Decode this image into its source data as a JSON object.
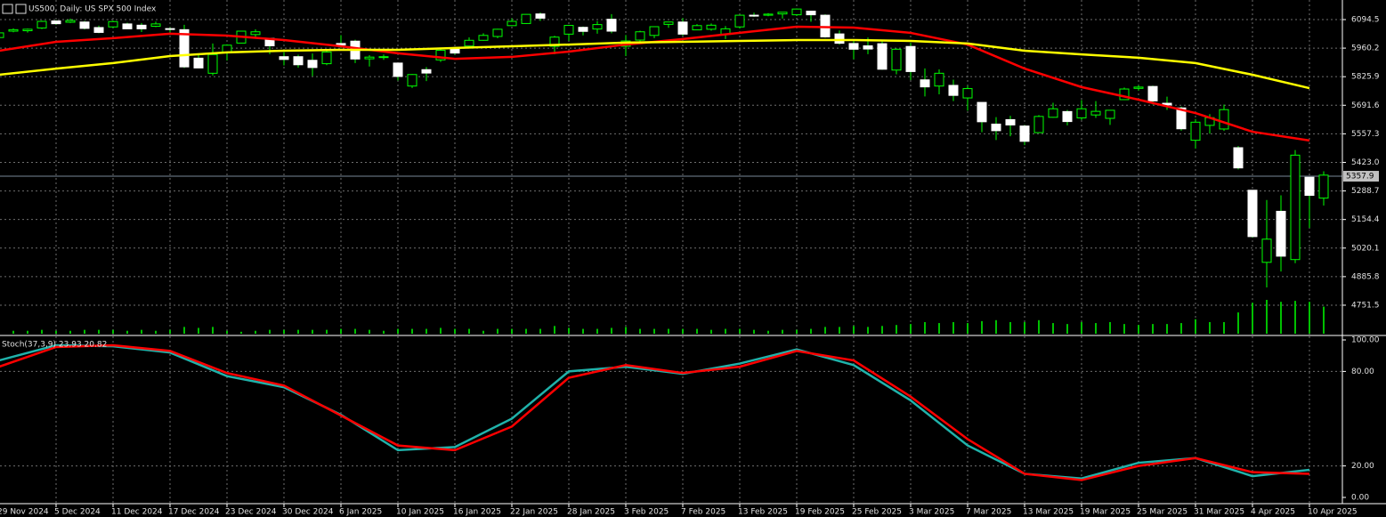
{
  "chart_data": [
    {
      "type": "candlestick",
      "title": "US500, Daily: US SPX 500 Index",
      "categories": [
        "29 Nov 2024",
        null,
        null,
        null,
        "5 Dec 2024",
        null,
        null,
        null,
        "11 Dec 2024",
        null,
        null,
        null,
        "17 Dec 2024",
        null,
        null,
        null,
        "23 Dec 2024",
        null,
        null,
        null,
        "30 Dec 2024",
        null,
        null,
        null,
        "6 Jan 2025",
        null,
        null,
        null,
        "10 Jan 2025",
        null,
        null,
        null,
        "16 Jan 2025",
        null,
        null,
        null,
        "22 Jan 2025",
        null,
        null,
        null,
        "28 Jan 2025",
        null,
        null,
        null,
        "3 Feb 2025",
        null,
        null,
        null,
        "7 Feb 2025",
        null,
        null,
        null,
        "13 Feb 2025",
        null,
        null,
        null,
        "19 Feb 2025",
        null,
        null,
        null,
        "25 Feb 2025",
        null,
        null,
        null,
        "3 Mar 2025",
        null,
        null,
        null,
        "7 Mar 2025",
        null,
        null,
        null,
        "13 Mar 2025",
        null,
        null,
        null,
        "19 Mar 2025",
        null,
        null,
        null,
        "25 Mar 2025",
        null,
        null,
        null,
        "31 Mar 2025",
        null,
        null,
        null,
        "4 Apr 2025",
        null,
        null,
        null,
        "10 Apr 2025",
        null
      ],
      "open": [
        6010,
        6040,
        6042,
        6055,
        6088,
        6082,
        6083,
        6057,
        6060,
        6074,
        6068,
        6063,
        6052,
        6047,
        5913,
        5842,
        5940,
        5984,
        6024,
        6006,
        5920,
        5920,
        5903,
        5887,
        5982,
        5993,
        5910,
        5918,
        5890,
        5782,
        5859,
        5905,
        5955,
        5970,
        5997,
        6015,
        6066,
        6076,
        6121,
        5969,
        6026,
        6058,
        6050,
        6096,
        5969,
        5998,
        6020,
        6072,
        6083,
        6046,
        6049,
        6025,
        6060,
        6115,
        6115,
        6121,
        6117,
        6134,
        6115,
        6027,
        5982,
        5971,
        5981,
        5857,
        5968,
        5811,
        5782,
        5785,
        5726,
        5705,
        5603,
        5624,
        5594,
        5563,
        5635,
        5662,
        5632,
        5646,
        5630,
        5718,
        5771,
        5780,
        5701,
        5679,
        5527,
        5597,
        5580,
        5492,
        5292,
        4953,
        5193,
        4966,
        5353,
        5255
      ],
      "high": [
        6044,
        6053,
        6052,
        6089,
        6092,
        6099,
        6088,
        6066,
        6090,
        6080,
        6078,
        6085,
        6058,
        6070,
        5935,
        5982,
        5978,
        6040,
        6049,
        6006,
        5941,
        5929,
        5935,
        5950,
        6021,
        6000,
        5927,
        5930,
        5890,
        5838,
        5871,
        5960,
        5964,
        6011,
        6030,
        6051,
        6100,
        6120,
        6128,
        6018,
        6070,
        6062,
        6087,
        6120,
        6022,
        6042,
        6062,
        6084,
        6101,
        6073,
        6076,
        6064,
        6116,
        6127,
        6125,
        6129,
        6147,
        6134,
        6119,
        6043,
        5993,
        6010,
        5994,
        5959,
        5986,
        5865,
        5860,
        5812,
        5783,
        5705,
        5636,
        5642,
        5598,
        5645,
        5703,
        5670,
        5716,
        5711,
        5670,
        5775,
        5786,
        5784,
        5732,
        5685,
        5627,
        5650,
        5695,
        5500,
        5292,
        5246,
        5268,
        5481,
        5353,
        5381
      ],
      "low": [
        6005,
        6035,
        6033,
        6050,
        6070,
        6078,
        6048,
        6030,
        6055,
        6050,
        6036,
        6059,
        6035,
        5867,
        5866,
        5832,
        5902,
        5983,
        6007,
        5932,
        5879,
        5868,
        5829,
        5880,
        5960,
        5890,
        5874,
        5905,
        5808,
        5773,
        5805,
        5895,
        5930,
        5963,
        5995,
        6007,
        6064,
        6074,
        6088,
        5932,
        5994,
        6020,
        6028,
        6030,
        5923,
        5990,
        6007,
        6056,
        6019,
        6044,
        6042,
        6003,
        6052,
        6107,
        6110,
        6099,
        6111,
        6084,
        6009,
        5977,
        5908,
        5932,
        5858,
        5837,
        5810,
        5733,
        5743,
        5711,
        5666,
        5565,
        5528,
        5546,
        5504,
        5563,
        5633,
        5597,
        5622,
        5632,
        5599,
        5718,
        5761,
        5695,
        5670,
        5572,
        5488,
        5558,
        5571,
        5390,
        5069,
        4835,
        4910,
        4949,
        5115,
        5220
      ],
      "close": [
        6032,
        6047,
        6049,
        6086,
        6075,
        6090,
        6053,
        6034,
        6085,
        6051,
        6051,
        6074,
        6050,
        5872,
        5867,
        5930,
        5974,
        6040,
        6037,
        5971,
        5907,
        5882,
        5869,
        5942,
        5975,
        5909,
        5918,
        5920,
        5827,
        5836,
        5843,
        5950,
        5937,
        5997,
        6020,
        6049,
        6086,
        6119,
        6101,
        6012,
        6067,
        6039,
        6071,
        6040,
        5994,
        6037,
        6061,
        6083,
        6026,
        6066,
        6068,
        6051,
        6115,
        6114,
        6120,
        6129,
        6144,
        6117,
        6013,
        5983,
        5955,
        5956,
        5861,
        5955,
        5850,
        5778,
        5842,
        5738,
        5770,
        5614,
        5572,
        5599,
        5522,
        5639,
        5675,
        5615,
        5675,
        5663,
        5668,
        5768,
        5777,
        5712,
        5693,
        5581,
        5612,
        5633,
        5671,
        5397,
        5074,
        5062,
        4982,
        5457,
        5268,
        5363
      ],
      "up_color": "#000000",
      "down_color": "#ffffff",
      "wick_color": "#00ff00",
      "volume": {
        "color": "#00c000",
        "values": [
          3,
          3,
          3,
          4,
          3,
          3,
          4,
          4,
          4,
          3,
          4,
          3,
          4,
          7,
          6,
          7,
          3,
          2,
          3,
          4,
          4,
          4,
          4,
          4,
          5,
          5,
          4,
          3,
          5,
          5,
          5,
          6,
          5,
          5,
          3,
          5,
          5,
          5,
          5,
          8,
          6,
          5,
          5,
          6,
          7,
          5,
          5,
          5,
          5,
          5,
          4,
          5,
          5,
          4,
          3,
          4,
          4,
          5,
          7,
          7,
          8,
          7,
          8,
          9,
          10,
          12,
          11,
          12,
          11,
          13,
          14,
          12,
          12,
          14,
          11,
          10,
          12,
          11,
          12,
          10,
          9,
          10,
          10,
          11,
          15,
          12,
          12,
          22,
          32,
          35,
          33,
          34,
          33,
          28
        ]
      },
      "overlays": [
        {
          "color": "#ff0000",
          "x": [
            "29 Nov 2024",
            "5 Dec 2024",
            "11 Dec 2024",
            "17 Dec 2024",
            "23 Dec 2024",
            "30 Dec 2024",
            "6 Jan 2025",
            "10 Jan 2025",
            "16 Jan 2025",
            "22 Jan 2025",
            "28 Jan 2025",
            "3 Feb 2025",
            "7 Feb 2025",
            "13 Feb 2025",
            "19 Feb 2025",
            "25 Feb 2025",
            "3 Mar 2025",
            "7 Mar 2025",
            "13 Mar 2025",
            "19 Mar 2025",
            "25 Mar 2025",
            "31 Mar 2025",
            "4 Apr 2025",
            "10 Apr 2025"
          ],
          "values": [
            5948,
            5990,
            6007,
            6028,
            6019,
            5998,
            5969,
            5936,
            5910,
            5919,
            5944,
            5977,
            6003,
            6032,
            6061,
            6057,
            6032,
            5977,
            5864,
            5777,
            5718,
            5655,
            5567,
            5526
          ]
        },
        {
          "color": "#ffff00",
          "x": [
            "29 Nov 2024",
            "5 Dec 2024",
            "11 Dec 2024",
            "17 Dec 2024",
            "23 Dec 2024",
            "30 Dec 2024",
            "6 Jan 2025",
            "10 Jan 2025",
            "16 Jan 2025",
            "22 Jan 2025",
            "28 Jan 2025",
            "3 Feb 2025",
            "7 Feb 2025",
            "13 Feb 2025",
            "19 Feb 2025",
            "25 Feb 2025",
            "3 Mar 2025",
            "7 Mar 2025",
            "13 Mar 2025",
            "19 Mar 2025",
            "25 Mar 2025",
            "31 Mar 2025",
            "4 Apr 2025",
            "10 Apr 2025"
          ],
          "values": [
            5835,
            5864,
            5890,
            5923,
            5940,
            5948,
            5952,
            5952,
            5961,
            5969,
            5977,
            5986,
            5990,
            5994,
            5998,
            5998,
            5994,
            5982,
            5948,
            5931,
            5915,
            5890,
            5835,
            5772
          ]
        }
      ],
      "last_price": 5357.9,
      "ylim": [
        4617.5,
        6186.5
      ],
      "yticks": [
        6094.5,
        5960.2,
        5825.9,
        5691.6,
        5557.3,
        {
          "value": 5423,
          "label": "5423.0"
        },
        5288.7,
        5154.4,
        5020.1,
        4885.8,
        4751.5
      ],
      "grid": true
    },
    {
      "type": "line",
      "title": "Stoch(37,3,9) 23.93 20.82",
      "x": [
        "29 Nov 2024",
        "5 Dec 2024",
        "11 Dec 2024",
        "17 Dec 2024",
        "23 Dec 2024",
        "30 Dec 2024",
        "6 Jan 2025",
        "10 Jan 2025",
        "16 Jan 2025",
        "22 Jan 2025",
        "28 Jan 2025",
        "3 Feb 2025",
        "7 Feb 2025",
        "13 Feb 2025",
        "19 Feb 2025",
        "25 Feb 2025",
        "3 Mar 2025",
        "7 Mar 2025",
        "13 Mar 2025",
        "19 Mar 2025",
        "25 Mar 2025",
        "31 Mar 2025",
        "4 Apr 2025",
        "10 Apr 2025"
      ],
      "series": [
        {
          "color": "#20b2aa",
          "values": [
            87,
            96.6,
            96,
            92,
            77,
            70,
            52.5,
            30,
            32,
            50,
            80,
            83,
            78.5,
            85,
            94,
            84,
            61.6,
            33,
            15,
            12,
            22,
            25,
            13.5,
            17.5
          ]
        },
        {
          "color": "#ff0000",
          "values": [
            83,
            95.5,
            96.6,
            93,
            79,
            71,
            52,
            33,
            30,
            45,
            76,
            84,
            79,
            83,
            93,
            87,
            64,
            37,
            15,
            11,
            20,
            25,
            16,
            15
          ]
        }
      ],
      "ylim": [
        0,
        100
      ],
      "yticks": [
        {
          "value": 100,
          "label": "100.00"
        },
        {
          "value": 80,
          "label": "80.00"
        },
        {
          "value": 20,
          "label": "20.00"
        },
        {
          "value": 0,
          "label": "0.00"
        }
      ],
      "grid": true
    }
  ]
}
